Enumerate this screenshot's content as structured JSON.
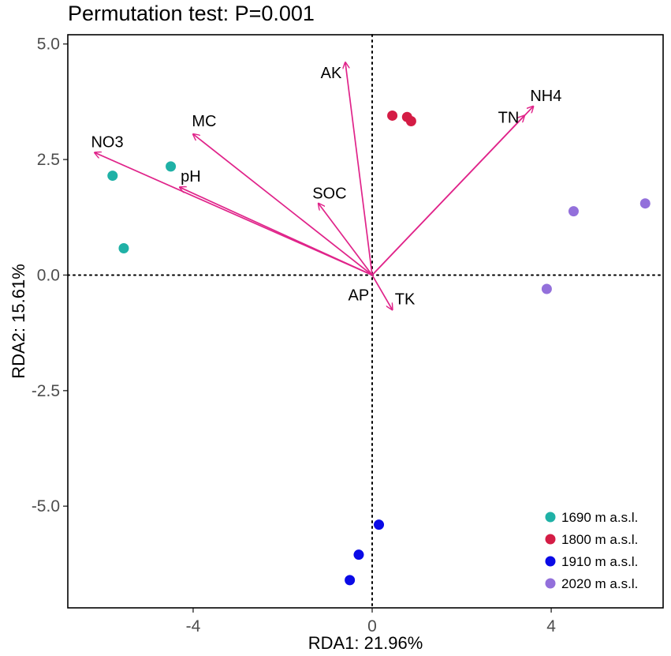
{
  "chart_data": {
    "type": "scatter",
    "title": "Permutation test: P=0.001",
    "xlabel": "RDA1: 21.96%",
    "ylabel": "RDA2: 15.61%",
    "xlim": [
      -6.8,
      6.5
    ],
    "ylim": [
      -7.2,
      5.2
    ],
    "xticks": [
      -4,
      0,
      4
    ],
    "yticks": [
      5.0,
      2.5,
      0.0,
      -2.5,
      -5.0
    ],
    "xtick_labels": [
      "-4",
      "0",
      "4"
    ],
    "ytick_labels": [
      "5.0",
      "2.5",
      "0.0",
      "-2.5",
      "-5.0"
    ],
    "reference_lines": [
      "x=0 dotted",
      "y=0 dotted"
    ],
    "legend_position": "bottom-right",
    "series": [
      {
        "name": "1690 m a.s.l.",
        "color": "#1fb1a6",
        "points": [
          [
            -5.8,
            2.15
          ],
          [
            -4.5,
            2.35
          ],
          [
            -5.55,
            0.58
          ]
        ]
      },
      {
        "name": "1800 m a.s.l.",
        "color": "#d41c45",
        "points": [
          [
            0.45,
            3.45
          ],
          [
            0.78,
            3.42
          ],
          [
            0.87,
            3.33
          ]
        ]
      },
      {
        "name": "1910 m a.s.l.",
        "color": "#0a0ae6",
        "points": [
          [
            0.15,
            -5.4
          ],
          [
            -0.3,
            -6.05
          ],
          [
            -0.5,
            -6.6
          ]
        ]
      },
      {
        "name": "2020 m a.s.l.",
        "color": "#9370db",
        "points": [
          [
            4.5,
            1.38
          ],
          [
            6.1,
            1.55
          ],
          [
            3.9,
            -0.3
          ]
        ]
      }
    ],
    "vectors": {
      "color": "#e0248a",
      "items": [
        {
          "label": "AK",
          "x": -0.6,
          "y": 4.6
        },
        {
          "label": "MC",
          "x": -4.0,
          "y": 3.05
        },
        {
          "label": "NO3",
          "x": -6.2,
          "y": 2.65
        },
        {
          "label": "pH",
          "x": -4.3,
          "y": 1.9
        },
        {
          "label": "SOC",
          "x": -1.2,
          "y": 1.55
        },
        {
          "label": "NH4",
          "x": 3.6,
          "y": 3.65
        },
        {
          "label": "TN",
          "x": 3.4,
          "y": 3.45
        },
        {
          "label": "TK",
          "x": 0.45,
          "y": -0.75
        },
        {
          "label": "AP",
          "x": 0.05,
          "y": -0.05
        }
      ]
    }
  }
}
